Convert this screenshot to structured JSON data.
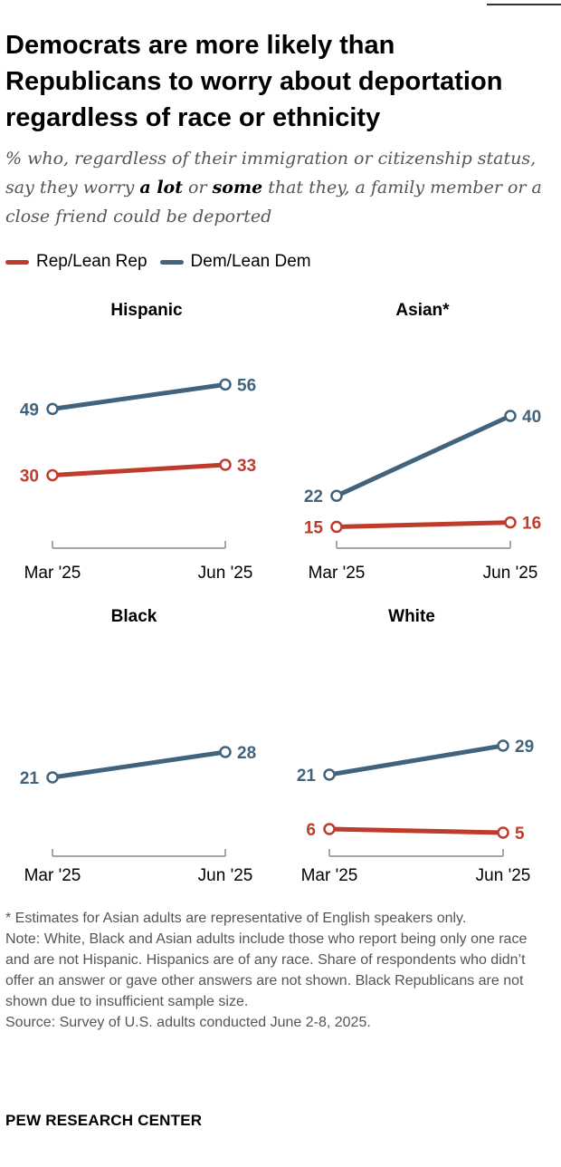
{
  "title": "Democrats are more likely than Republicans to worry about deportation regardless of race or ethnicity",
  "subtitle": {
    "part1": "% who, regardless of their immigration or citizenship status, say they worry ",
    "bold1": "a lot",
    "part2": " or ",
    "bold2": "some",
    "part3": " that they, a family member or a close friend could be deported"
  },
  "legend": [
    {
      "label": "Rep/Lean Rep",
      "color": "#c0392b"
    },
    {
      "label": "Dem/Lean Dem",
      "color": "#436a86"
    }
  ],
  "colors": {
    "rep": "#bf3b2c",
    "dem": "#41647e",
    "axis": "#a6a6a6"
  },
  "chart_data": [
    {
      "type": "line",
      "title": "Hispanic",
      "x": [
        "Mar '25",
        "Jun '25"
      ],
      "series": [
        {
          "name": "Rep/Lean Rep",
          "values": [
            30,
            33
          ]
        },
        {
          "name": "Dem/Lean Dem",
          "values": [
            49,
            56
          ]
        }
      ],
      "ylim": [
        0,
        70
      ]
    },
    {
      "type": "line",
      "title": "Asian*",
      "x": [
        "Mar '25",
        "Jun '25"
      ],
      "series": [
        {
          "name": "Rep/Lean Rep",
          "values": [
            15,
            16
          ]
        },
        {
          "name": "Dem/Lean Dem",
          "values": [
            22,
            40
          ]
        }
      ],
      "ylim": [
        0,
        70
      ]
    },
    {
      "type": "line",
      "title": "Black",
      "x": [
        "Mar '25",
        "Jun '25"
      ],
      "series": [
        {
          "name": "Dem/Lean Dem",
          "values": [
            21,
            28
          ]
        }
      ],
      "ylim": [
        0,
        70
      ]
    },
    {
      "type": "line",
      "title": "White",
      "x": [
        "Mar '25",
        "Jun '25"
      ],
      "series": [
        {
          "name": "Rep/Lean Rep",
          "values": [
            6,
            5
          ]
        },
        {
          "name": "Dem/Lean Dem",
          "values": [
            21,
            29
          ]
        }
      ],
      "ylim": [
        0,
        70
      ]
    }
  ],
  "notes": {
    "asterisk": "* Estimates for Asian adults are representative of English speakers only.",
    "note": "Note: White, Black and Asian adults include those who report being only one race and are not Hispanic. Hispanics are of any race. Share of respondents who didn’t offer an answer or gave other answers are not shown. Black Republicans are not shown due to insufficient sample size.",
    "source": "Source: Survey of U.S. adults conducted June 2-8, 2025."
  },
  "brand": "PEW RESEARCH CENTER"
}
